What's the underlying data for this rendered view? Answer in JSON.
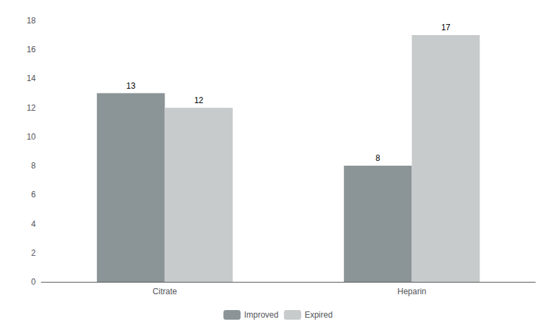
{
  "chart_data": {
    "type": "bar",
    "categories": [
      "Citrate",
      "Heparin"
    ],
    "series": [
      {
        "name": "Improved",
        "color": "#8b9496",
        "values": [
          13,
          8
        ]
      },
      {
        "name": "Expired",
        "color": "#c8cbcb",
        "values": [
          12,
          17
        ]
      }
    ],
    "ylim": [
      0,
      18
    ],
    "yticks": [
      0,
      2,
      4,
      6,
      8,
      10,
      12,
      14,
      16,
      18
    ],
    "grid": false,
    "legend": "bottom",
    "data_labels": true
  }
}
